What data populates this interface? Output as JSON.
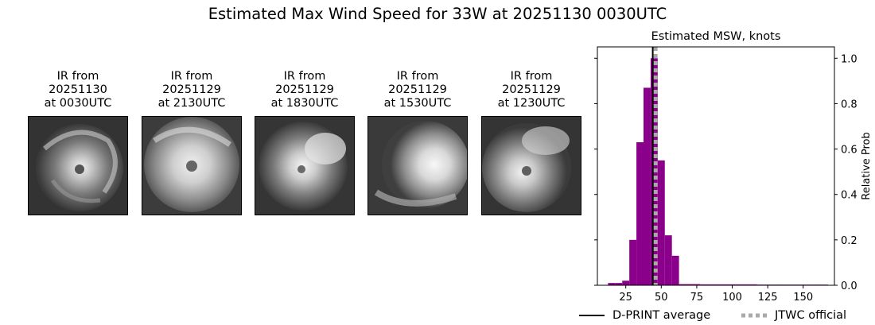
{
  "title": "Estimated Max Wind Speed for 33W at 20251130 0030UTC",
  "ir_panels": [
    {
      "caption": "IR from\n20251130\nat 0030UTC"
    },
    {
      "caption": "IR from\n20251129\nat 2130UTC"
    },
    {
      "caption": "IR from\n20251129\nat 1830UTC"
    },
    {
      "caption": "IR from\n20251129\nat 1530UTC"
    },
    {
      "caption": "IR from\n20251129\nat 1230UTC"
    }
  ],
  "chart_data": {
    "type": "bar",
    "title": "Estimated MSW, knots",
    "xlabel": "",
    "ylabel": "Relative Prob",
    "xlim": [
      5,
      172
    ],
    "ylim": [
      0,
      1.05
    ],
    "x_ticks": [
      25,
      50,
      75,
      100,
      125,
      150
    ],
    "y_ticks": [
      0.0,
      0.2,
      0.4,
      0.6,
      0.8,
      1.0
    ],
    "y_tick_labels": [
      "0.0",
      "0.2",
      "0.4",
      "0.6",
      "0.8",
      "1.0"
    ],
    "y_axis_side": "right",
    "bin_width": 5,
    "bins": [
      {
        "x": 15,
        "y": 0.01
      },
      {
        "x": 20,
        "y": 0.01
      },
      {
        "x": 25,
        "y": 0.02
      },
      {
        "x": 30,
        "y": 0.2
      },
      {
        "x": 35,
        "y": 0.63
      },
      {
        "x": 40,
        "y": 0.87
      },
      {
        "x": 45,
        "y": 1.0
      },
      {
        "x": 50,
        "y": 0.55
      },
      {
        "x": 55,
        "y": 0.22
      },
      {
        "x": 60,
        "y": 0.13
      },
      {
        "x": 65,
        "y": 0.005
      },
      {
        "x": 70,
        "y": 0.005
      },
      {
        "x": 75,
        "y": 0.005
      },
      {
        "x": 80,
        "y": 0.004
      },
      {
        "x": 85,
        "y": 0.004
      },
      {
        "x": 90,
        "y": 0.004
      },
      {
        "x": 95,
        "y": 0.004
      },
      {
        "x": 100,
        "y": 0.004
      },
      {
        "x": 105,
        "y": 0.004
      },
      {
        "x": 110,
        "y": 0.004
      },
      {
        "x": 115,
        "y": 0.004
      },
      {
        "x": 120,
        "y": 0.003
      },
      {
        "x": 125,
        "y": 0.003
      },
      {
        "x": 130,
        "y": 0.003
      },
      {
        "x": 135,
        "y": 0.003
      },
      {
        "x": 140,
        "y": 0.003
      },
      {
        "x": 145,
        "y": 0.003
      },
      {
        "x": 150,
        "y": 0.003
      },
      {
        "x": 155,
        "y": 0.003
      },
      {
        "x": 160,
        "y": 0.003
      },
      {
        "x": 165,
        "y": 0.003
      }
    ],
    "dprint_average": 44,
    "jtwc_official": 46,
    "bar_color": "#8b008b",
    "dprint_color": "#000000",
    "jtwc_color": "#a9a9a9",
    "legend": {
      "placement": "bottom",
      "entries": [
        {
          "label": "D-PRINT average"
        },
        {
          "label": "JTWC official"
        }
      ]
    }
  }
}
